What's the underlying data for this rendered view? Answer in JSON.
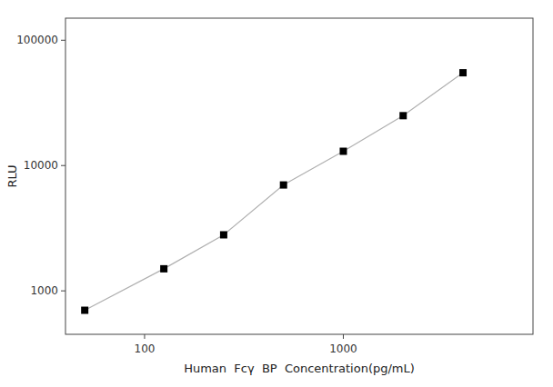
{
  "chart_data": {
    "type": "line",
    "x": [
      50,
      125,
      250,
      500,
      1000,
      2000,
      4000
    ],
    "values": [
      700,
      1500,
      2800,
      7000,
      13000,
      25000,
      55000
    ],
    "color": "#b0b0b0",
    "marker": "square",
    "xlabel": "Human  Fcγ  BP  Concentration(pg/mL)",
    "ylabel": "RLU",
    "xlim": [
      40,
      9000
    ],
    "ylim": [
      450,
      150000
    ],
    "xticks": [
      100,
      1000
    ],
    "yticks": [
      1000,
      10000,
      100000
    ],
    "log": true,
    "grid": false
  }
}
